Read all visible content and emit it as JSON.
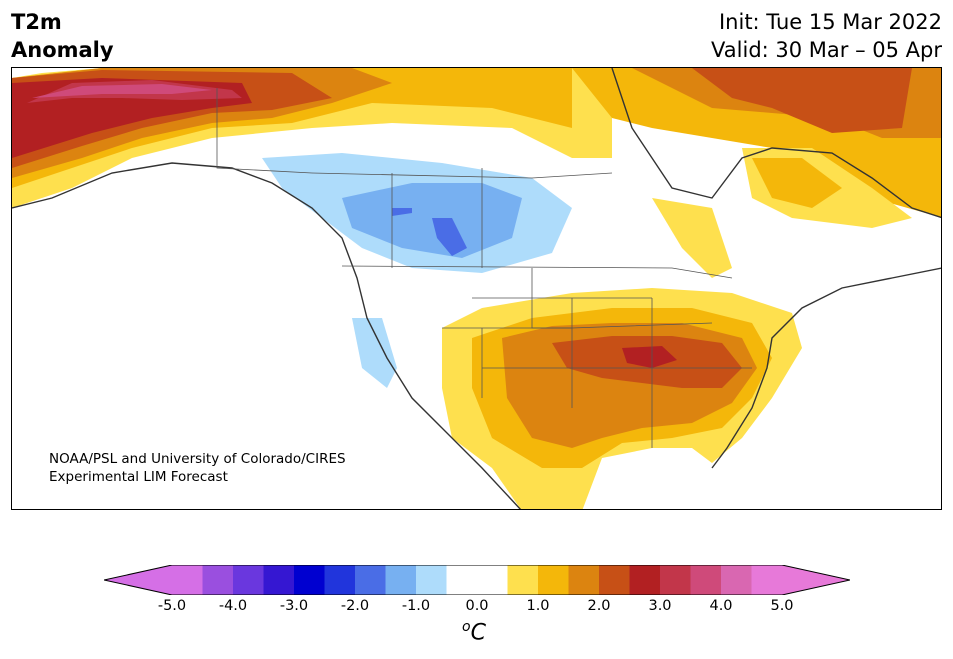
{
  "header": {
    "title_line1": "T2m",
    "title_line2": "Anomaly",
    "init": "Init: Tue 15 Mar 2022",
    "valid": "Valid: 30 Mar – 05 Apr"
  },
  "credit": {
    "line1": "NOAA/PSL and University of Colorado/CIRES",
    "line2": "Experimental LIM Forecast"
  },
  "colorbar": {
    "min": -5.0,
    "max": 5.0,
    "step": 0.5,
    "ticks": [
      "-5.0",
      "-4.0",
      "-3.0",
      "-2.0",
      "-1.0",
      "0.0",
      "1.0",
      "2.0",
      "3.0",
      "4.0",
      "5.0"
    ],
    "unit_sup": "o",
    "unit": "C",
    "colors": [
      "#d56fe6",
      "#9a4fdf",
      "#6a37de",
      "#3517d2",
      "#0000d0",
      "#2135dc",
      "#4a6de6",
      "#77b0f1",
      "#aedcfb",
      "#ffffff",
      "#ffffff",
      "#fee04e",
      "#f4b70a",
      "#dc8410",
      "#c75016",
      "#b22022",
      "#c2364a",
      "#cf4a7a",
      "#d967b1",
      "#e779d9"
    ],
    "under_color": "#d56fe6",
    "over_color": "#e779d9"
  },
  "map": {
    "region": "North America",
    "field": "2-m temperature anomaly"
  }
}
